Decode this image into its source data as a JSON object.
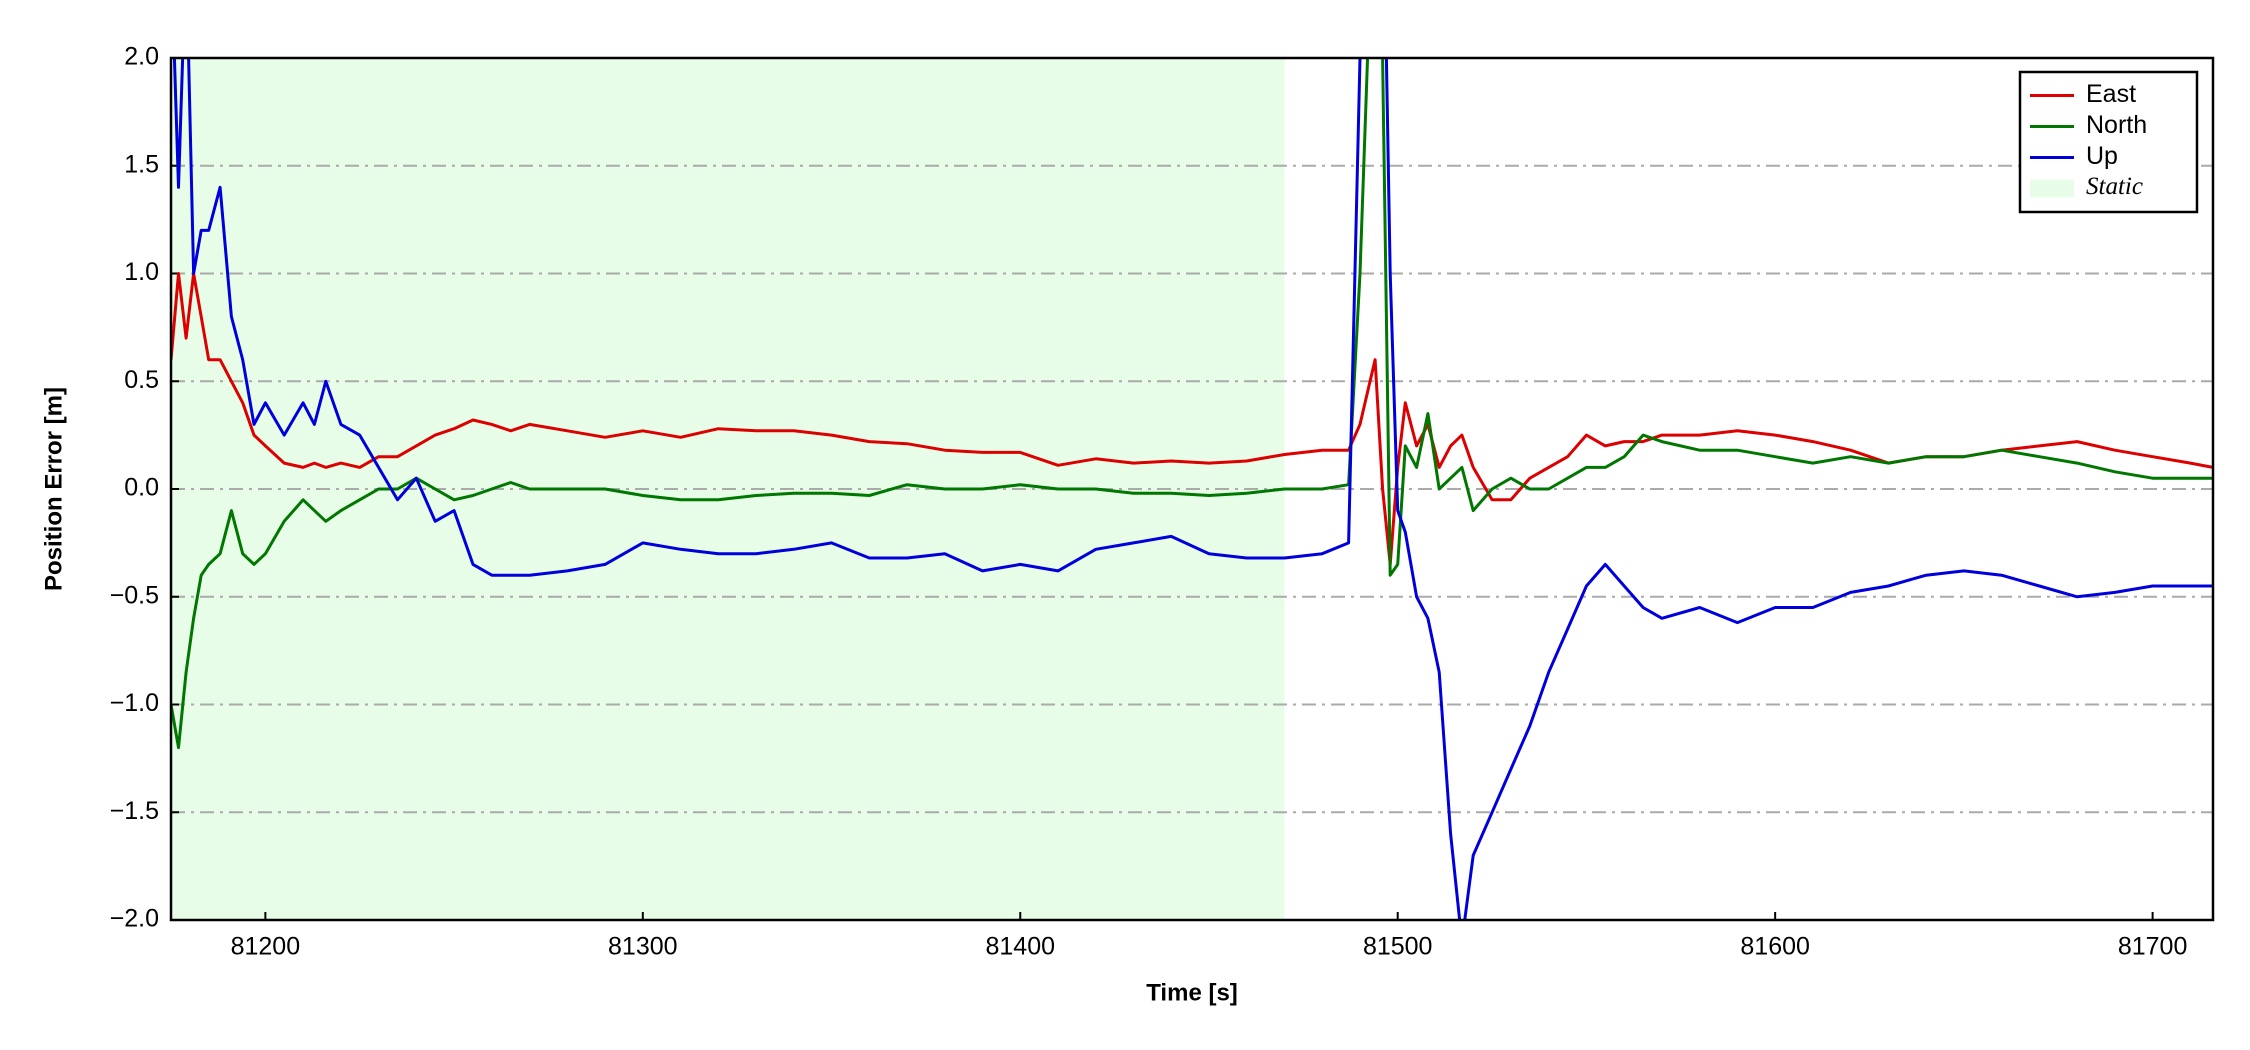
{
  "chart_data": {
    "type": "line",
    "xlabel": "Time [s]",
    "ylabel": "Position Error [m]",
    "x": [
      81175,
      81177,
      81179,
      81181,
      81183,
      81185,
      81188,
      81191,
      81194,
      81197,
      81200,
      81205,
      81210,
      81213,
      81216,
      81220,
      81225,
      81230,
      81235,
      81240,
      81245,
      81250,
      81255,
      81260,
      81265,
      81270,
      81280,
      81290,
      81300,
      81310,
      81320,
      81330,
      81340,
      81350,
      81360,
      81370,
      81380,
      81390,
      81400,
      81410,
      81420,
      81430,
      81440,
      81450,
      81460,
      81470,
      81480,
      81487,
      81490,
      81494,
      81496,
      81498,
      81500,
      81502,
      81505,
      81508,
      81511,
      81514,
      81517,
      81520,
      81525,
      81530,
      81535,
      81540,
      81545,
      81550,
      81555,
      81560,
      81565,
      81570,
      81580,
      81590,
      81600,
      81610,
      81620,
      81630,
      81640,
      81650,
      81660,
      81670,
      81680,
      81690,
      81700,
      81710,
      81716
    ],
    "series": [
      {
        "name": "East",
        "color": "#dd0000",
        "values": [
          0.6,
          1.0,
          0.7,
          1.0,
          0.8,
          0.6,
          0.6,
          0.5,
          0.4,
          0.25,
          0.2,
          0.12,
          0.1,
          0.12,
          0.1,
          0.12,
          0.1,
          0.15,
          0.15,
          0.2,
          0.25,
          0.28,
          0.32,
          0.3,
          0.27,
          0.3,
          0.27,
          0.24,
          0.27,
          0.24,
          0.28,
          0.27,
          0.27,
          0.25,
          0.22,
          0.21,
          0.18,
          0.17,
          0.17,
          0.11,
          0.14,
          0.12,
          0.13,
          0.12,
          0.13,
          0.16,
          0.18,
          0.18,
          0.3,
          0.6,
          0.0,
          -0.35,
          0.1,
          0.4,
          0.2,
          0.3,
          0.1,
          0.2,
          0.25,
          0.1,
          -0.05,
          -0.05,
          0.05,
          0.1,
          0.15,
          0.25,
          0.2,
          0.22,
          0.22,
          0.25,
          0.25,
          0.27,
          0.25,
          0.22,
          0.18,
          0.12,
          0.15,
          0.15,
          0.18,
          0.2,
          0.22,
          0.18,
          0.15,
          0.12,
          0.1
        ]
      },
      {
        "name": "North",
        "color": "#007700",
        "values": [
          -1.0,
          -1.2,
          -0.85,
          -0.6,
          -0.4,
          -0.35,
          -0.3,
          -0.1,
          -0.3,
          -0.35,
          -0.3,
          -0.15,
          -0.05,
          -0.1,
          -0.15,
          -0.1,
          -0.05,
          0.0,
          0.0,
          0.05,
          0.0,
          -0.05,
          -0.03,
          0.0,
          0.03,
          0.0,
          0.0,
          0.0,
          -0.03,
          -0.05,
          -0.05,
          -0.03,
          -0.02,
          -0.02,
          -0.03,
          0.02,
          0.0,
          0.0,
          0.02,
          0.0,
          0.0,
          -0.02,
          -0.02,
          -0.03,
          -0.02,
          0.0,
          0.0,
          0.02,
          1.0,
          3.0,
          2.0,
          -0.4,
          -0.35,
          0.2,
          0.1,
          0.35,
          0.0,
          0.05,
          0.1,
          -0.1,
          0.0,
          0.05,
          0.0,
          0.0,
          0.05,
          0.1,
          0.1,
          0.15,
          0.25,
          0.22,
          0.18,
          0.18,
          0.15,
          0.12,
          0.15,
          0.12,
          0.15,
          0.15,
          0.18,
          0.15,
          0.12,
          0.08,
          0.05,
          0.05,
          0.05
        ]
      },
      {
        "name": "Up",
        "color": "#0000dd",
        "values": [
          2.5,
          1.4,
          2.5,
          1.0,
          1.2,
          1.2,
          1.4,
          0.8,
          0.6,
          0.3,
          0.4,
          0.25,
          0.4,
          0.3,
          0.5,
          0.3,
          0.25,
          0.1,
          -0.05,
          0.05,
          -0.15,
          -0.1,
          -0.35,
          -0.4,
          -0.4,
          -0.4,
          -0.38,
          -0.35,
          -0.25,
          -0.28,
          -0.3,
          -0.3,
          -0.28,
          -0.25,
          -0.32,
          -0.32,
          -0.3,
          -0.38,
          -0.35,
          -0.38,
          -0.28,
          -0.25,
          -0.22,
          -0.3,
          -0.32,
          -0.32,
          -0.3,
          -0.25,
          2.0,
          3.0,
          3.0,
          1.0,
          -0.1,
          -0.2,
          -0.5,
          -0.6,
          -0.85,
          -1.6,
          -2.1,
          -1.7,
          -1.5,
          -1.3,
          -1.1,
          -0.85,
          -0.65,
          -0.45,
          -0.35,
          -0.45,
          -0.55,
          -0.6,
          -0.55,
          -0.62,
          -0.55,
          -0.55,
          -0.48,
          -0.45,
          -0.4,
          -0.38,
          -0.4,
          -0.45,
          -0.5,
          -0.48,
          -0.45,
          -0.45,
          -0.45
        ]
      }
    ],
    "spans": [
      {
        "name": "Static",
        "start": 81175,
        "end": 81470,
        "color": "#e8fde8"
      }
    ],
    "xlim": [
      81175,
      81716
    ],
    "ylim": [
      -2,
      2
    ],
    "xticks": [
      81200,
      81300,
      81400,
      81500,
      81600,
      81700
    ],
    "yticks": [
      {
        "value": -2,
        "label": "−2.0"
      },
      {
        "value": -1.5,
        "label": "−1.5"
      },
      {
        "value": -1,
        "label": "−1.0"
      },
      {
        "value": -0.5,
        "label": "−0.5"
      },
      {
        "value": 0,
        "label": "0.0"
      },
      {
        "value": 0.5,
        "label": "0.5"
      },
      {
        "value": 1,
        "label": "1.0"
      },
      {
        "value": 1.5,
        "label": "1.5"
      },
      {
        "value": 2,
        "label": "2.0"
      }
    ],
    "grid": "y",
    "legend": "upper right"
  }
}
